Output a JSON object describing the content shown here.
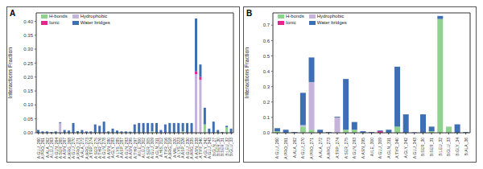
{
  "chart_data": [
    {
      "type": "bar",
      "title": "A",
      "y_label": "Interactions Fraction",
      "stacked": true,
      "legend": "upper left",
      "categories": [
        "A:GLU_260",
        "A:PRO_261",
        "A:ALA_262",
        "A:LEU_263",
        "A:GLN_264",
        "A:SER_265",
        "A:ASN_267",
        "A:ARG_268",
        "A:GLU_270",
        "A:PRO_271",
        "A:ALA_272",
        "A:ARG_273",
        "A:TRP_274",
        "A:SER_275",
        "A:THR_276",
        "A:GLN_278",
        "A:ASN_280",
        "A:GLY_283",
        "A:LYS_285",
        "A:ASP_287",
        "A:GLN_293",
        "A:ASN_295",
        "A:THR_297",
        "A:ILE_300",
        "A:LEU_302",
        "A:SER_305",
        "A:GLU_309",
        "A:GLN_311",
        "A:HIS_312",
        "A:TYR_316",
        "A:ARG_318",
        "A:VAL_320",
        "A:LYS_323",
        "A:ASP_326",
        "A:GLU_330",
        "A:ARG_335",
        "A:ASN_338",
        "A:TYR_340",
        "A:GLY_342",
        "A:GLU_343",
        "B:GLN_27",
        "B:SER_30",
        "B:SER_31",
        "B:LEU_32",
        "B:GLU_33"
      ],
      "series": [
        {
          "name": "H-bonds",
          "color": "#8fd18f",
          "values": [
            0,
            0,
            0,
            0,
            0,
            0,
            0,
            0,
            0,
            0,
            0,
            0,
            0,
            0,
            0,
            0,
            0,
            0,
            0,
            0,
            0,
            0,
            0,
            0,
            0,
            0,
            0.005,
            0,
            0,
            0,
            0,
            0,
            0,
            0.005,
            0,
            0,
            0,
            0,
            0.03,
            0,
            0,
            0,
            0,
            0.02,
            0
          ]
        },
        {
          "name": "Hydrophobic",
          "color": "#c6b3d9",
          "values": [
            0,
            0,
            0,
            0,
            0,
            0.035,
            0,
            0,
            0,
            0,
            0,
            0,
            0,
            0,
            0,
            0,
            0,
            0,
            0,
            0,
            0,
            0,
            0,
            0,
            0,
            0,
            0,
            0,
            0,
            0,
            0,
            0,
            0,
            0,
            0,
            0,
            0.21,
            0.19,
            0,
            0,
            0,
            0,
            0,
            0,
            0
          ]
        },
        {
          "name": "Ionic",
          "color": "#e3258e",
          "values": [
            0,
            0,
            0,
            0,
            0,
            0,
            0,
            0,
            0,
            0,
            0,
            0,
            0,
            0,
            0,
            0,
            0,
            0,
            0,
            0,
            0,
            0,
            0,
            0,
            0,
            0,
            0,
            0,
            0,
            0,
            0,
            0,
            0,
            0,
            0,
            0,
            0.01,
            0.01,
            0,
            0,
            0,
            0,
            0,
            0,
            0
          ]
        },
        {
          "name": "Water bridges",
          "color": "#3e6fb5",
          "values": [
            0.01,
            0.005,
            0.005,
            0.003,
            0.005,
            0.003,
            0.01,
            0.008,
            0.035,
            0.006,
            0.01,
            0.005,
            0.005,
            0.03,
            0.025,
            0.04,
            0.005,
            0.015,
            0.008,
            0.005,
            0.005,
            0.004,
            0.03,
            0.035,
            0.035,
            0.035,
            0.03,
            0.035,
            0.01,
            0.03,
            0.035,
            0.035,
            0.035,
            0.03,
            0.035,
            0.035,
            0.19,
            0.045,
            0.06,
            0.015,
            0.04,
            0.01,
            0.003,
            0.005,
            0.015
          ]
        }
      ],
      "ylim": [
        0,
        0.43
      ],
      "yticks": [
        {
          "value": 0,
          "label": "0.00"
        },
        {
          "value": 0.05,
          "label": "0.05"
        },
        {
          "value": 0.1,
          "label": "0.10"
        },
        {
          "value": 0.15,
          "label": "0.15"
        },
        {
          "value": 0.2,
          "label": "0.20"
        },
        {
          "value": 0.25,
          "label": "0.25"
        },
        {
          "value": 0.3,
          "label": "0.30"
        },
        {
          "value": 0.35,
          "label": "0.35"
        },
        {
          "value": 0.4,
          "label": "0.40"
        }
      ]
    },
    {
      "type": "bar",
      "title": "B",
      "y_label": "Interactions Fraction",
      "stacked": true,
      "legend": "upper left",
      "categories": [
        "A:GLU_260",
        "A:PRO_261",
        "A:ALA_262",
        "A:GLU_270",
        "A:PRO_271",
        "A:ALA_272",
        "A:ARG_273",
        "A:TRP_274",
        "A:SER_275",
        "A:GLN_293",
        "A:ASN_295",
        "A:ILE_300",
        "A:GLU_309",
        "A:GLN_311",
        "A:TYR_340",
        "A:GLY_342",
        "A:GLU_343",
        "B:SER_30",
        "B:SER_31",
        "B:LEU_32",
        "B:GLU_33",
        "B:GLY_34",
        "B:ALA_36"
      ],
      "series": [
        {
          "name": "H-bonds",
          "color": "#8fd18f",
          "values": [
            0.01,
            0,
            0,
            0.04,
            0.02,
            0,
            0,
            0,
            0.02,
            0.02,
            0,
            0,
            0,
            0,
            0.04,
            0,
            0,
            0,
            0.01,
            0.74,
            0.04,
            0,
            0
          ]
        },
        {
          "name": "Hydrophobic",
          "color": "#c6b3d9",
          "values": [
            0,
            0,
            0,
            0.01,
            0.31,
            0,
            0,
            0.1,
            0,
            0,
            0,
            0,
            0,
            0,
            0,
            0,
            0,
            0,
            0,
            0,
            0,
            0,
            0
          ]
        },
        {
          "name": "Ionic",
          "color": "#e3258e",
          "values": [
            0,
            0,
            0,
            0,
            0,
            0,
            0,
            0,
            0,
            0,
            0,
            0,
            0.01,
            0,
            0,
            0,
            0,
            0,
            0,
            0,
            0,
            0,
            0
          ]
        },
        {
          "name": "Water bridges",
          "color": "#3e6fb5",
          "values": [
            0.02,
            0.02,
            0.005,
            0.21,
            0.16,
            0.02,
            0.005,
            0.005,
            0.33,
            0.05,
            0.01,
            0.005,
            0.005,
            0.02,
            0.39,
            0.12,
            0.003,
            0.12,
            0.03,
            0.02,
            0,
            0.055,
            0.005
          ]
        }
      ],
      "ylim": [
        0,
        0.78
      ],
      "yticks": [
        {
          "value": 0,
          "label": "0.0"
        },
        {
          "value": 0.1,
          "label": "0.1"
        },
        {
          "value": 0.2,
          "label": "0.2"
        },
        {
          "value": 0.3,
          "label": "0.3"
        },
        {
          "value": 0.4,
          "label": "0.4"
        },
        {
          "value": 0.5,
          "label": "0.5"
        },
        {
          "value": 0.6,
          "label": "0.6"
        },
        {
          "value": 0.7,
          "label": "0.7"
        }
      ]
    }
  ]
}
